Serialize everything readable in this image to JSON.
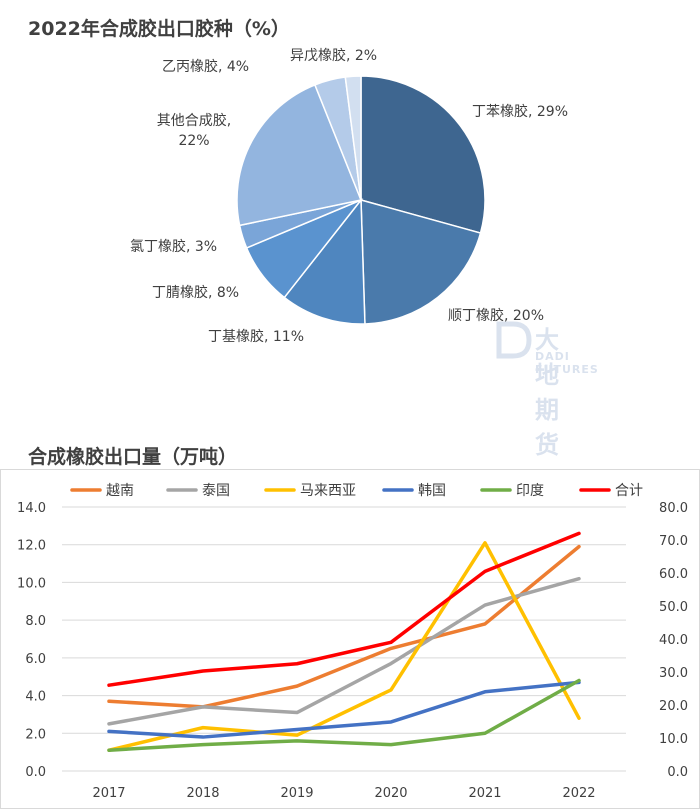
{
  "chart_data": [
    {
      "type": "pie",
      "title": "2022年合成胶出口胶种（%）",
      "slices": [
        {
          "label": "丁苯橡胶, 29%",
          "value": 29,
          "color": "#3e6690"
        },
        {
          "label": "顺丁橡胶, 20%",
          "value": 20,
          "color": "#4a7aab"
        },
        {
          "label": "丁基橡胶, 11%",
          "value": 11,
          "color": "#4f86bf"
        },
        {
          "label": "丁腈橡胶, 8%",
          "value": 8,
          "color": "#5a93cf"
        },
        {
          "label": "氯丁橡胶, 3%",
          "value": 3,
          "color": "#7aa5d8"
        },
        {
          "label": "其他合成胶, 22%",
          "value": 22,
          "color": "#93b5df"
        },
        {
          "label": "乙丙橡胶, 4%",
          "value": 4,
          "color": "#b4cbe9"
        },
        {
          "label": "异戊橡胶, 2%",
          "value": 2,
          "color": "#d2dff0"
        }
      ]
    },
    {
      "type": "line",
      "title": "合成橡胶出口量（万吨）",
      "x": [
        "2017",
        "2018",
        "2019",
        "2020",
        "2021",
        "2022"
      ],
      "ylim_left": [
        0,
        14
      ],
      "yticks_left": [
        "0.0",
        "2.0",
        "4.0",
        "6.0",
        "8.0",
        "10.0",
        "12.0",
        "14.0"
      ],
      "ylim_right": [
        0,
        80
      ],
      "yticks_right": [
        "0.0",
        "10.0",
        "20.0",
        "30.0",
        "40.0",
        "50.0",
        "60.0",
        "70.0",
        "80.0"
      ],
      "legend_position": "top",
      "series": [
        {
          "name": "越南",
          "color": "#ed7d31",
          "axis": "left",
          "values": [
            3.7,
            3.4,
            4.5,
            6.5,
            7.8,
            11.9
          ]
        },
        {
          "name": "泰国",
          "color": "#a5a5a5",
          "axis": "left",
          "values": [
            2.5,
            3.4,
            3.1,
            5.7,
            8.8,
            10.2
          ]
        },
        {
          "name": "马来西亚",
          "color": "#ffc000",
          "axis": "left",
          "values": [
            1.1,
            2.3,
            1.9,
            4.3,
            12.1,
            2.8
          ]
        },
        {
          "name": "韩国",
          "color": "#4472c4",
          "axis": "left",
          "values": [
            2.1,
            1.8,
            2.2,
            2.6,
            4.2,
            4.7
          ]
        },
        {
          "name": "印度",
          "color": "#70ad47",
          "axis": "left",
          "values": [
            1.1,
            1.4,
            1.6,
            1.4,
            2.0,
            4.8
          ]
        },
        {
          "name": "合计",
          "color": "#ff0000",
          "axis": "right",
          "values": [
            26,
            30.3,
            32.5,
            39,
            60.5,
            72
          ]
        }
      ]
    }
  ],
  "watermark": {
    "text": "大地期货",
    "sub": "DADI FUTURES"
  }
}
